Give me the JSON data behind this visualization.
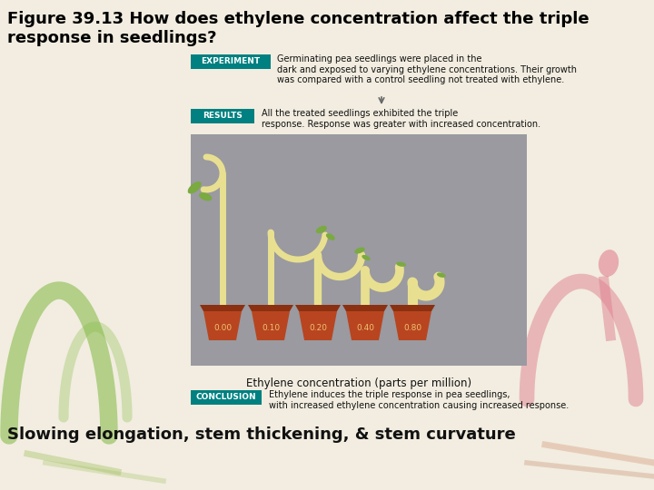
{
  "title_line1": "Figure 39.13 How does ethylene concentration affect the triple",
  "title_line2": "response in seedlings?",
  "title_fontsize": 13,
  "background_color": "#f2ede0",
  "figure_bg": "#f2ede0",
  "experiment_label": "EXPERIMENT",
  "experiment_label_bg": "#008080",
  "experiment_text": "Germinating pea seedlings were placed in the\ndark and exposed to varying ethylene concentrations. Their growth\nwas compared with a control seedling not treated with ethylene.",
  "results_label": "RESULTS",
  "results_label_bg": "#008080",
  "results_text": "All the treated seedlings exhibited the triple\nresponse. Response was greater with increased concentration.",
  "conclusion_label": "CONCLUSION",
  "conclusion_label_bg": "#008080",
  "conclusion_text": "Ethylene induces the triple response in pea seedlings,\nwith increased ethylene concentration causing increased response.",
  "bottom_text": "Slowing elongation, stem thickening, & stem curvature",
  "gray_box_bg": "#9a9aa0",
  "concentrations": [
    "0.00",
    "0.10",
    "0.20",
    "0.40",
    "0.80"
  ],
  "ethylene_label": "Ethylene concentration (parts per million)",
  "pot_color": "#b84520",
  "pot_rim_color": "#8b3010",
  "stem_color": "#e8e090",
  "leaf_color": "#7aaa40"
}
